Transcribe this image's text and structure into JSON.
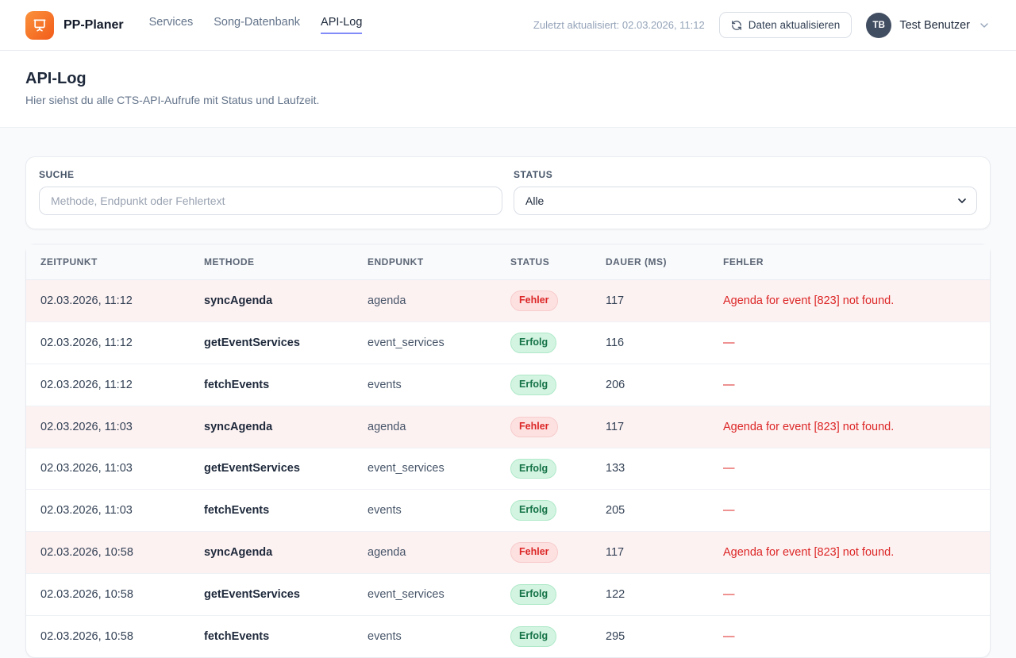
{
  "header": {
    "brand": "PP-Planer",
    "nav": [
      {
        "label": "Services",
        "active": false
      },
      {
        "label": "Song-Datenbank",
        "active": false
      },
      {
        "label": "API-Log",
        "active": true
      }
    ],
    "last_updated": "Zuletzt aktualisiert: 02.03.2026, 11:12",
    "refresh_button_label": "Daten aktualisieren",
    "user": {
      "initials": "TB",
      "name": "Test Benutzer"
    }
  },
  "page": {
    "title": "API-Log",
    "subtitle": "Hier siehst du alle CTS-API-Aufrufe mit Status und Laufzeit."
  },
  "filters": {
    "search_label": "Suche",
    "search_placeholder": "Methode, Endpunkt oder Fehlertext",
    "status_label": "Status",
    "status_value": "Alle"
  },
  "table": {
    "columns": [
      "Zeitpunkt",
      "Methode",
      "Endpunkt",
      "Status",
      "Dauer (ms)",
      "Fehler"
    ],
    "empty_placeholder": "—",
    "rows": [
      {
        "timestamp": "02.03.2026, 11:12",
        "method": "syncAgenda",
        "endpoint": "agenda",
        "status": "Fehler",
        "status_type": "error",
        "duration": "117",
        "error": "Agenda for event [823] not found."
      },
      {
        "timestamp": "02.03.2026, 11:12",
        "method": "getEventServices",
        "endpoint": "event_services",
        "status": "Erfolg",
        "status_type": "success",
        "duration": "116",
        "error": null
      },
      {
        "timestamp": "02.03.2026, 11:12",
        "method": "fetchEvents",
        "endpoint": "events",
        "status": "Erfolg",
        "status_type": "success",
        "duration": "206",
        "error": null
      },
      {
        "timestamp": "02.03.2026, 11:03",
        "method": "syncAgenda",
        "endpoint": "agenda",
        "status": "Fehler",
        "status_type": "error",
        "duration": "117",
        "error": "Agenda for event [823] not found."
      },
      {
        "timestamp": "02.03.2026, 11:03",
        "method": "getEventServices",
        "endpoint": "event_services",
        "status": "Erfolg",
        "status_type": "success",
        "duration": "133",
        "error": null
      },
      {
        "timestamp": "02.03.2026, 11:03",
        "method": "fetchEvents",
        "endpoint": "events",
        "status": "Erfolg",
        "status_type": "success",
        "duration": "205",
        "error": null
      },
      {
        "timestamp": "02.03.2026, 10:58",
        "method": "syncAgenda",
        "endpoint": "agenda",
        "status": "Fehler",
        "status_type": "error",
        "duration": "117",
        "error": "Agenda for event [823] not found."
      },
      {
        "timestamp": "02.03.2026, 10:58",
        "method": "getEventServices",
        "endpoint": "event_services",
        "status": "Erfolg",
        "status_type": "success",
        "duration": "122",
        "error": null
      },
      {
        "timestamp": "02.03.2026, 10:58",
        "method": "fetchEvents",
        "endpoint": "events",
        "status": "Erfolg",
        "status_type": "success",
        "duration": "295",
        "error": null
      }
    ]
  },
  "colors": {
    "brand_orange": "#f97316",
    "nav_active_underline": "#818cf8",
    "error_text": "#dc2626",
    "error_row_bg": "#fdf2f2",
    "error_badge_bg": "#fde1e1",
    "success_badge_bg": "#d4f4e2",
    "success_badge_text": "#157347",
    "page_bg": "#f8fafc"
  }
}
